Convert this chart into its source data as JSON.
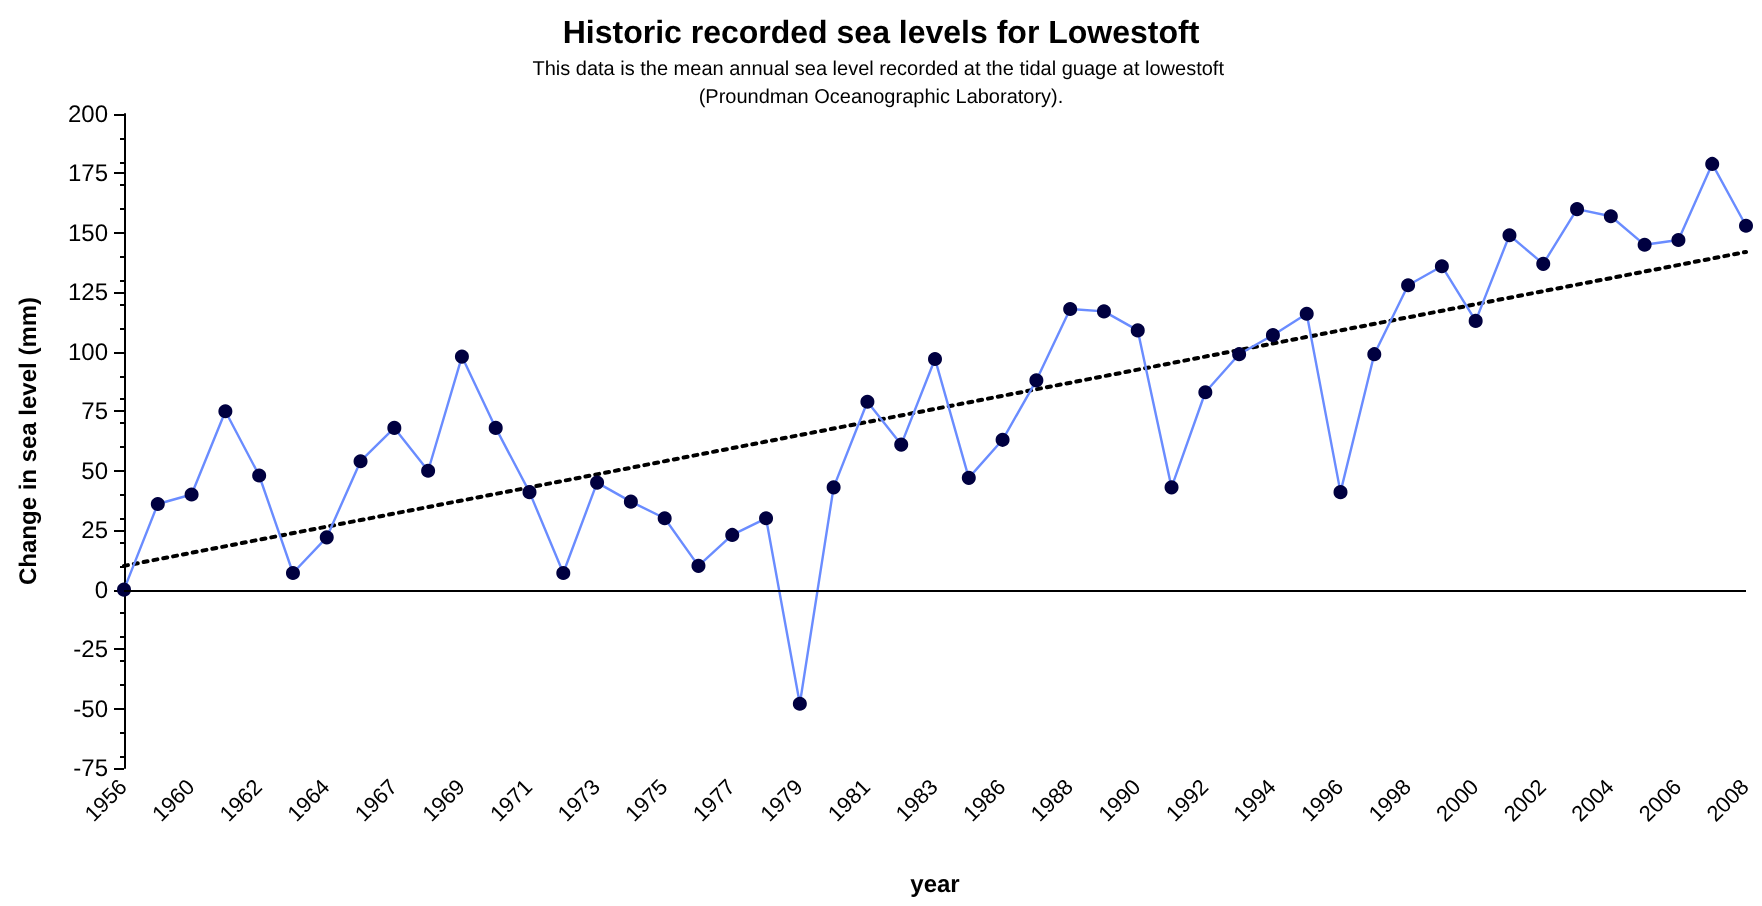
{
  "chart_data": {
    "type": "line",
    "title": "Historic recorded sea levels for Lowestoft",
    "subtitle": "This data is the mean annual sea level recorded at the tidal guage at lowestoft (Proundman Oceanographic Laboratory).",
    "xlabel": "year",
    "ylabel": "Change in sea level (mm)",
    "categories": [
      "1956",
      null,
      "1960",
      null,
      "1962",
      null,
      "1964",
      null,
      "1967",
      null,
      "1969",
      null,
      "1971",
      null,
      "1973",
      null,
      "1975",
      null,
      "1977",
      null,
      "1979",
      null,
      "1981",
      null,
      "1983",
      null,
      "1986",
      null,
      "1988",
      null,
      "1990",
      null,
      "1992",
      null,
      "1994",
      null,
      "1996",
      null,
      "1998",
      null,
      "2000",
      null,
      "2002",
      null,
      "2004",
      null,
      "2006",
      null,
      "2008"
    ],
    "series": [
      {
        "color": "#6a8cff",
        "marker": "circle",
        "line_style": "solid",
        "values": [
          0,
          36,
          40,
          75,
          48,
          7,
          22,
          54,
          68,
          50,
          98,
          68,
          41,
          7,
          45,
          37,
          30,
          10,
          23,
          30,
          -48,
          43,
          79,
          61,
          97,
          47,
          63,
          88,
          118,
          117,
          109,
          43,
          83,
          99,
          107,
          116,
          41,
          99,
          128,
          136,
          113,
          149,
          137,
          160,
          157,
          145,
          147,
          179,
          153
        ]
      },
      {
        "color": "#000000",
        "marker": "none",
        "line_style": "dotted",
        "values": [
          10,
          null,
          null,
          null,
          null,
          null,
          null,
          null,
          null,
          null,
          null,
          null,
          null,
          null,
          null,
          null,
          null,
          null,
          null,
          null,
          null,
          null,
          null,
          null,
          null,
          null,
          null,
          null,
          null,
          null,
          null,
          null,
          null,
          null,
          null,
          null,
          null,
          null,
          null,
          null,
          null,
          null,
          null,
          null,
          null,
          null,
          null,
          null,
          142
        ]
      }
    ],
    "ylim": [
      -75,
      200
    ],
    "yticks": [
      -75,
      -50,
      -25,
      0,
      25,
      50,
      75,
      100,
      125,
      150,
      175,
      200
    ],
    "ref_lines": [
      {
        "axis": "y",
        "value": 0,
        "color": "#000000"
      }
    ],
    "grid": false
  }
}
